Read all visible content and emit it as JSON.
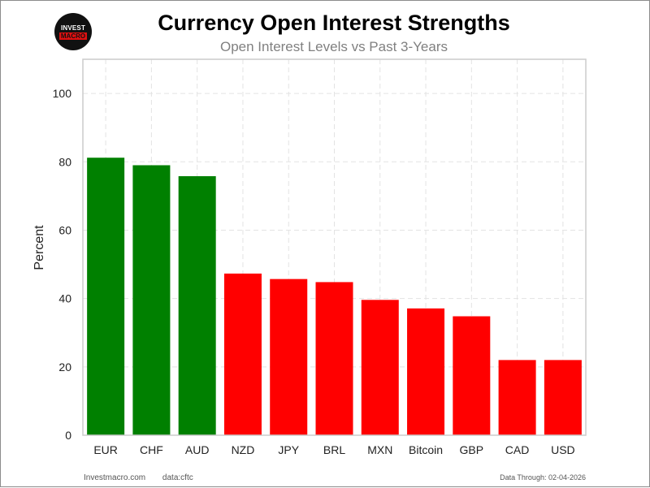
{
  "logo": {
    "top": "INVEST",
    "bottom": "MACRO"
  },
  "footer": {
    "site": "Investmacro.com",
    "source": "data:cftc",
    "data_through": "Data Through: 02-04-2026"
  },
  "colors": {
    "positive": "#008000",
    "negative": "#ff0000",
    "grid": "#e3e3e3",
    "axes": "#cccccc"
  },
  "chart_data": {
    "type": "bar",
    "title": "Currency Open Interest Strengths",
    "subtitle": "Open Interest Levels vs Past 3-Years",
    "xlabel": "",
    "ylabel": "Percent",
    "ylim": [
      0,
      110
    ],
    "yticks": [
      0,
      20,
      40,
      60,
      80,
      100
    ],
    "grid": true,
    "categories": [
      "EUR",
      "CHF",
      "AUD",
      "NZD",
      "JPY",
      "BRL",
      "MXN",
      "Bitcoin",
      "GBP",
      "CAD",
      "USD"
    ],
    "values": [
      81.2,
      79.0,
      75.8,
      47.3,
      45.7,
      44.8,
      39.6,
      37.1,
      34.8,
      22.0,
      22.0
    ],
    "bar_colors": [
      "#008000",
      "#008000",
      "#008000",
      "#ff0000",
      "#ff0000",
      "#ff0000",
      "#ff0000",
      "#ff0000",
      "#ff0000",
      "#ff0000",
      "#ff0000"
    ]
  }
}
